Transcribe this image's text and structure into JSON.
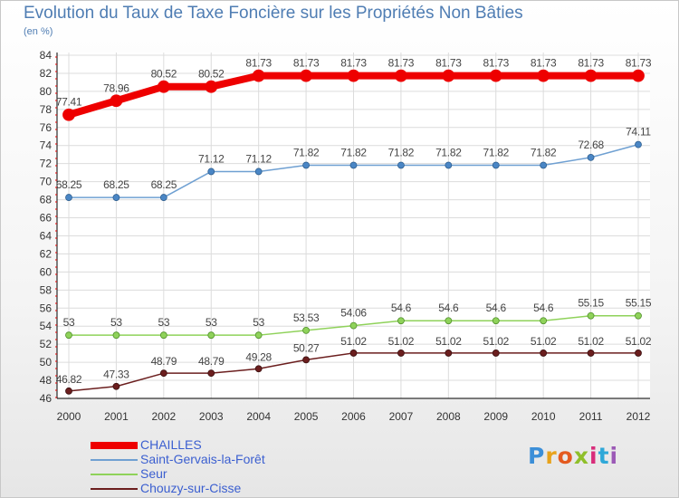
{
  "chart_data": {
    "type": "line",
    "title": "Evolution du Taux de Taxe Foncière sur les Propriétés Non Bâties",
    "ylabel": "(en %)",
    "xlabel": "",
    "x": [
      "2000",
      "2001",
      "2002",
      "2003",
      "2004",
      "2005",
      "2006",
      "2007",
      "2008",
      "2009",
      "2010",
      "2011",
      "2012"
    ],
    "ylim": [
      46,
      84
    ],
    "yticks": [
      46,
      48,
      50,
      52,
      54,
      56,
      58,
      60,
      62,
      64,
      66,
      68,
      70,
      72,
      74,
      76,
      78,
      80,
      82,
      84
    ],
    "grid": true,
    "legend_position": "bottom-left",
    "series": [
      {
        "name": "CHAILLES",
        "color": "#ee0000",
        "values": [
          77.41,
          78.96,
          80.52,
          80.52,
          81.73,
          81.73,
          81.73,
          81.73,
          81.73,
          81.73,
          81.73,
          81.73,
          81.73
        ],
        "labels": [
          "77.41",
          "78.96",
          "80.52",
          "80.52",
          "81.73",
          "81.73",
          "81.73",
          "81.73",
          "81.73",
          "81.73",
          "81.73",
          "81.73",
          "81.73"
        ]
      },
      {
        "name": "Saint-Gervais-la-Forêt",
        "color": "#6fa0d2",
        "values": [
          68.25,
          68.25,
          68.25,
          71.12,
          71.12,
          71.82,
          71.82,
          71.82,
          71.82,
          71.82,
          71.82,
          72.68,
          74.11
        ],
        "labels": [
          "68.25",
          "68.25",
          "68.25",
          "71.12",
          "71.12",
          "71.82",
          "71.82",
          "71.82",
          "71.82",
          "71.82",
          "71.82",
          "72.68",
          "74.11"
        ]
      },
      {
        "name": "Seur",
        "color": "#8fd25a",
        "values": [
          53,
          53,
          53,
          53,
          53,
          53.53,
          54.06,
          54.6,
          54.6,
          54.6,
          54.6,
          55.15,
          55.15
        ],
        "labels": [
          "53",
          "53",
          "53",
          "53",
          "53",
          "53.53",
          "54.06",
          "54.6",
          "54.6",
          "54.6",
          "54.6",
          "55.15",
          "55.15"
        ]
      },
      {
        "name": "Chouzy-sur-Cisse",
        "color": "#6b1e1e",
        "values": [
          46.82,
          47.33,
          48.79,
          48.79,
          49.28,
          50.27,
          51.02,
          51.02,
          51.02,
          51.02,
          51.02,
          51.02,
          51.02
        ],
        "labels": [
          "46.82",
          "47.33",
          "48.79",
          "48.79",
          "49.28",
          "50.27",
          "51.02",
          "51.02",
          "51.02",
          "51.02",
          "51.02",
          "51.02",
          "51.02"
        ]
      }
    ]
  },
  "logo": {
    "letters": [
      "P",
      "r",
      "o",
      "x",
      "i",
      "t",
      "i"
    ],
    "colors": [
      "#3c8fd8",
      "#e8a31c",
      "#e45a1f",
      "#8fbf2a",
      "#d82c7a",
      "#2fa8d8",
      "#9b59b6"
    ]
  }
}
